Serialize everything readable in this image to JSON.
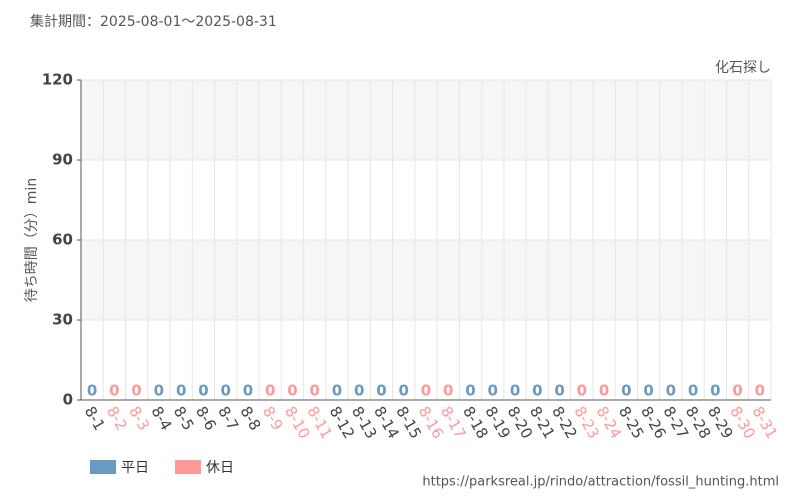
{
  "chart_data": {
    "type": "bar",
    "title": "集計期間：2025-08-01〜2025-08-31",
    "subtitle": "化石探し",
    "y_label": "待ち時間（分）min",
    "source": "https://parksreal.jp/rindo/attraction/fossil_hunting.html",
    "categories": [
      "8-1",
      "8-2",
      "8-3",
      "8-4",
      "8-5",
      "8-6",
      "8-7",
      "8-8",
      "8-9",
      "8-10",
      "8-11",
      "8-12",
      "8-13",
      "8-14",
      "8-15",
      "8-16",
      "8-17",
      "8-18",
      "8-19",
      "8-20",
      "8-21",
      "8-22",
      "8-23",
      "8-24",
      "8-25",
      "8-26",
      "8-27",
      "8-28",
      "8-29",
      "8-30",
      "8-31"
    ],
    "series": [
      {
        "name": "平日",
        "color": "#6a9ac4",
        "values": [
          0,
          null,
          null,
          0,
          0,
          0,
          0,
          0,
          null,
          null,
          null,
          0,
          0,
          0,
          0,
          null,
          null,
          0,
          0,
          0,
          0,
          0,
          null,
          null,
          0,
          0,
          0,
          0,
          0,
          null,
          null
        ]
      },
      {
        "name": "休日",
        "color": "#ff9999",
        "values": [
          null,
          0,
          0,
          null,
          null,
          null,
          null,
          null,
          0,
          0,
          0,
          null,
          null,
          null,
          null,
          0,
          0,
          null,
          null,
          null,
          null,
          null,
          0,
          0,
          null,
          null,
          null,
          null,
          null,
          0,
          0
        ]
      }
    ],
    "ylim": [
      0,
      120
    ],
    "yticks": [
      0,
      30,
      60,
      90,
      120
    ],
    "grid": true
  }
}
